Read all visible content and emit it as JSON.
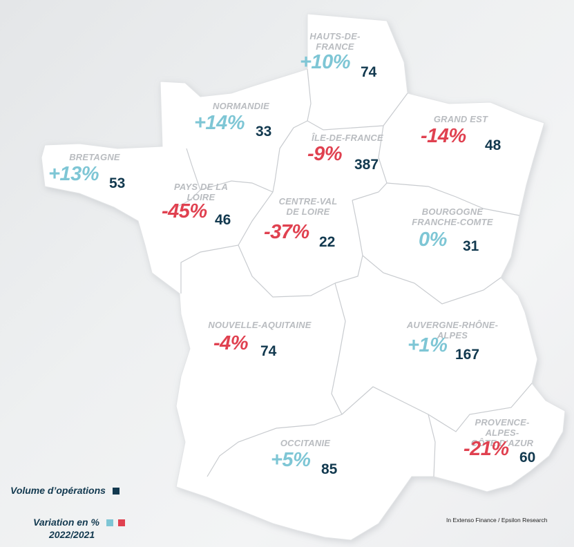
{
  "colors": {
    "positive": "#7ec6d5",
    "negative": "#e04150",
    "volume": "#12394f",
    "region_name": "#b9bcc0",
    "border": "#c8cbcf"
  },
  "regions": [
    {
      "id": "hauts-de-france",
      "name": "HAUTS-DE-\nFRANCE",
      "variation": "+10%",
      "sign": "positive",
      "volume": "74"
    },
    {
      "id": "normandie",
      "name": "NORMANDIE",
      "variation": "+14%",
      "sign": "positive",
      "volume": "33"
    },
    {
      "id": "ile-de-france",
      "name": "ÎLE-DE-FRANCE",
      "variation": "-9%",
      "sign": "negative",
      "volume": "387"
    },
    {
      "id": "grand-est",
      "name": "GRAND EST",
      "variation": "-14%",
      "sign": "negative",
      "volume": "48"
    },
    {
      "id": "bretagne",
      "name": "BRETAGNE",
      "variation": "+13%",
      "sign": "positive",
      "volume": "53"
    },
    {
      "id": "pays-de-la-loire",
      "name": "PAYS DE LA\nLOIRE",
      "variation": "-45%",
      "sign": "negative",
      "volume": "46"
    },
    {
      "id": "centre-val-de-loire",
      "name": "CENTRE-VAL\nDE LOIRE",
      "variation": "-37%",
      "sign": "negative",
      "volume": "22"
    },
    {
      "id": "bourgogne-franche-comte",
      "name": "BOURGOGNE\nFRANCHE-COMTE",
      "variation": "0%",
      "sign": "positive",
      "volume": "31"
    },
    {
      "id": "nouvelle-aquitaine",
      "name": "NOUVELLE-AQUITAINE",
      "variation": "-4%",
      "sign": "negative",
      "volume": "74"
    },
    {
      "id": "auvergne-rhone-alpes",
      "name": "AUVERGNE-RHÔNE-ALPES",
      "variation": "+1%",
      "sign": "positive",
      "volume": "167"
    },
    {
      "id": "occitanie",
      "name": "OCCITANIE",
      "variation": "+5%",
      "sign": "positive",
      "volume": "85"
    },
    {
      "id": "paca",
      "name": "PROVENCE-ALPES-\nCÔTE D'AZUR",
      "variation": "-21%",
      "sign": "negative",
      "volume": "60"
    }
  ],
  "legend": {
    "volume_label": "Volume d’opérations",
    "variation_label": "Variation en %",
    "variation_period": "2022/2021"
  },
  "source": "In Extenso Finance / Epsilon Research"
}
